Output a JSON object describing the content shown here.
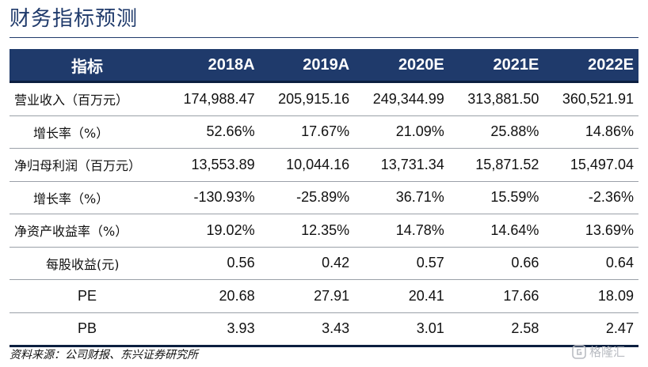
{
  "title": "财务指标预测",
  "table": {
    "header": [
      "指标",
      "2018A",
      "2019A",
      "2020E",
      "2021E",
      "2022E"
    ],
    "rows": [
      {
        "label": "营业收入（百万元）",
        "values": [
          "174,988.47",
          "205,915.16",
          "249,344.99",
          "313,881.50",
          "360,521.91"
        ]
      },
      {
        "label": "增长率（%）",
        "values": [
          "52.66%",
          "17.67%",
          "21.09%",
          "25.88%",
          "14.86%"
        ]
      },
      {
        "label": "净归母利润（百万元）",
        "values": [
          "13,553.89",
          "10,044.16",
          "13,731.34",
          "15,871.52",
          "15,497.04"
        ]
      },
      {
        "label": "增长率（%）",
        "values": [
          "-130.93%",
          "-25.89%",
          "36.71%",
          "15.59%",
          "-2.36%"
        ]
      },
      {
        "label": "净资产收益率（%）",
        "values": [
          "19.02%",
          "12.35%",
          "14.78%",
          "14.64%",
          "13.69%"
        ]
      },
      {
        "label": "每股收益(元)",
        "values": [
          "0.56",
          "0.42",
          "0.57",
          "0.66",
          "0.64"
        ]
      },
      {
        "label": "PE",
        "values": [
          "20.68",
          "27.91",
          "20.41",
          "17.66",
          "18.09"
        ]
      },
      {
        "label": "PB",
        "values": [
          "3.93",
          "3.43",
          "3.01",
          "2.58",
          "2.47"
        ]
      }
    ]
  },
  "source": "资料来源：公司财报、东兴证券研究所",
  "watermark": {
    "text": "格隆汇",
    "icon": "gelonghui-logo-icon",
    "color": "#b9bcc2"
  },
  "colors": {
    "title": "#1f3a6b",
    "header_bg": "#1f3a6b",
    "header_text": "#ffffff"
  }
}
